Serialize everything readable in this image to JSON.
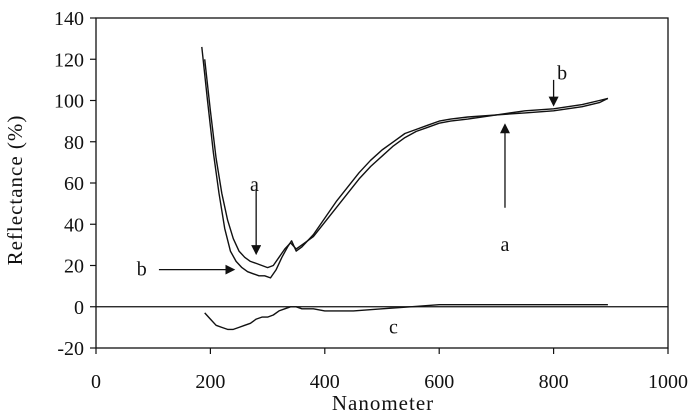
{
  "chart_data": {
    "type": "line",
    "title": "",
    "xlabel": "Nanometer",
    "ylabel": "Reflectance (%)",
    "xlim": [
      0,
      1000
    ],
    "ylim": [
      -20,
      140
    ],
    "x_ticks": [
      0,
      200,
      400,
      600,
      800,
      1000
    ],
    "y_ticks": [
      -20,
      0,
      20,
      40,
      60,
      80,
      100,
      120,
      140
    ],
    "x_tick_labels": [
      "0",
      "200",
      "400",
      "600",
      "800",
      "1000"
    ],
    "y_tick_labels": [
      "-20",
      "0",
      "20",
      "40",
      "60",
      "80",
      "100",
      "120",
      "140"
    ],
    "grid": false,
    "legend": "none",
    "zero_line": true,
    "series": [
      {
        "name": "a",
        "color": "#111111",
        "points": [
          [
            190,
            120
          ],
          [
            200,
            95
          ],
          [
            210,
            72
          ],
          [
            220,
            55
          ],
          [
            230,
            42
          ],
          [
            240,
            33
          ],
          [
            250,
            27
          ],
          [
            260,
            24
          ],
          [
            270,
            22
          ],
          [
            280,
            21
          ],
          [
            290,
            20
          ],
          [
            300,
            19
          ],
          [
            310,
            20
          ],
          [
            320,
            24
          ],
          [
            330,
            28
          ],
          [
            340,
            31
          ],
          [
            350,
            28
          ],
          [
            360,
            30
          ],
          [
            380,
            34
          ],
          [
            400,
            41
          ],
          [
            420,
            48
          ],
          [
            440,
            55
          ],
          [
            460,
            62
          ],
          [
            480,
            68
          ],
          [
            500,
            73
          ],
          [
            520,
            78
          ],
          [
            540,
            82
          ],
          [
            560,
            85
          ],
          [
            580,
            87
          ],
          [
            600,
            89
          ],
          [
            620,
            90
          ],
          [
            650,
            91
          ],
          [
            700,
            93
          ],
          [
            750,
            95
          ],
          [
            800,
            96
          ],
          [
            850,
            98
          ],
          [
            880,
            100
          ],
          [
            895,
            101
          ]
        ]
      },
      {
        "name": "b",
        "color": "#111111",
        "points": [
          [
            185,
            126
          ],
          [
            195,
            100
          ],
          [
            205,
            75
          ],
          [
            215,
            55
          ],
          [
            225,
            38
          ],
          [
            235,
            27
          ],
          [
            245,
            22
          ],
          [
            255,
            19
          ],
          [
            265,
            17
          ],
          [
            275,
            16
          ],
          [
            285,
            15
          ],
          [
            295,
            15
          ],
          [
            305,
            14
          ],
          [
            315,
            18
          ],
          [
            325,
            24
          ],
          [
            335,
            29
          ],
          [
            342,
            32
          ],
          [
            350,
            27
          ],
          [
            360,
            29
          ],
          [
            380,
            35
          ],
          [
            400,
            43
          ],
          [
            420,
            51
          ],
          [
            440,
            58
          ],
          [
            460,
            65
          ],
          [
            480,
            71
          ],
          [
            500,
            76
          ],
          [
            520,
            80
          ],
          [
            540,
            84
          ],
          [
            560,
            86
          ],
          [
            580,
            88
          ],
          [
            600,
            90
          ],
          [
            620,
            91
          ],
          [
            650,
            92
          ],
          [
            700,
            93
          ],
          [
            750,
            94
          ],
          [
            800,
            95
          ],
          [
            850,
            97
          ],
          [
            880,
            99
          ],
          [
            895,
            101
          ]
        ]
      },
      {
        "name": "c",
        "color": "#111111",
        "points": [
          [
            190,
            -3
          ],
          [
            200,
            -6
          ],
          [
            210,
            -9
          ],
          [
            220,
            -10
          ],
          [
            230,
            -11
          ],
          [
            240,
            -11
          ],
          [
            250,
            -10
          ],
          [
            260,
            -9
          ],
          [
            270,
            -8
          ],
          [
            280,
            -6
          ],
          [
            290,
            -5
          ],
          [
            300,
            -5
          ],
          [
            310,
            -4
          ],
          [
            320,
            -2
          ],
          [
            330,
            -1
          ],
          [
            340,
            0
          ],
          [
            350,
            0
          ],
          [
            360,
            -1
          ],
          [
            380,
            -1
          ],
          [
            400,
            -2
          ],
          [
            450,
            -2
          ],
          [
            500,
            -1
          ],
          [
            550,
            0
          ],
          [
            600,
            1
          ],
          [
            650,
            1
          ],
          [
            700,
            1
          ],
          [
            750,
            1
          ],
          [
            800,
            1
          ],
          [
            850,
            1
          ],
          [
            880,
            1
          ],
          [
            895,
            1
          ]
        ]
      }
    ],
    "annotations": [
      {
        "label": "a",
        "x": 277,
        "y": 59,
        "arrow": "down",
        "arrow_from": [
          280,
          57
        ],
        "arrow_to": [
          280,
          26
        ]
      },
      {
        "label": "b",
        "x": 80,
        "y": 18,
        "arrow": "right",
        "arrow_from": [
          110,
          18
        ],
        "arrow_to": [
          240,
          18
        ]
      },
      {
        "label": "b",
        "x": 815,
        "y": 113,
        "arrow": "down",
        "arrow_from": [
          800,
          110
        ],
        "arrow_to": [
          800,
          98
        ]
      },
      {
        "label": "a",
        "x": 715,
        "y": 30,
        "arrow": "up",
        "arrow_from": [
          715,
          48
        ],
        "arrow_to": [
          715,
          88
        ]
      },
      {
        "label": "c",
        "x": 520,
        "y": -10,
        "arrow": "none"
      }
    ]
  }
}
